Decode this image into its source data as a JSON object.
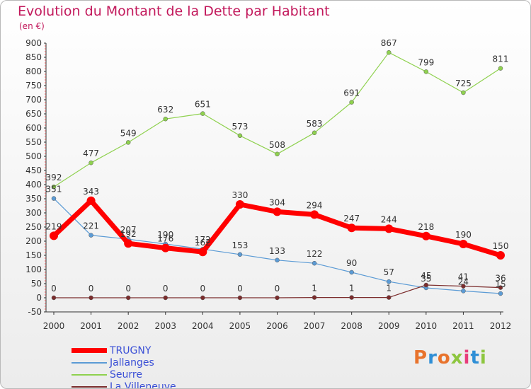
{
  "chart_data": {
    "type": "line",
    "title": "Evolution du Montant de la Dette par Habitant",
    "subtitle": "(en €)",
    "xlabel": "",
    "ylabel": "",
    "categories": [
      "2000",
      "2001",
      "2002",
      "2003",
      "2004",
      "2005",
      "2006",
      "2007",
      "2008",
      "2009",
      "2010",
      "2011",
      "2012"
    ],
    "ylim": [
      -50,
      900
    ],
    "yticks": [
      -50,
      0,
      50,
      100,
      150,
      200,
      250,
      300,
      350,
      400,
      450,
      500,
      550,
      600,
      650,
      700,
      750,
      800,
      850,
      900
    ],
    "grid": false,
    "legend_position": "bottom-left",
    "series": [
      {
        "name": "TRUGNY",
        "color": "#ff0000",
        "values": [
          219,
          343,
          192,
          176,
          162,
          330,
          304,
          294,
          247,
          244,
          218,
          190,
          150
        ]
      },
      {
        "name": "Jallanges",
        "color": "#5b9bd5",
        "values": [
          351,
          221,
          207,
          190,
          172,
          153,
          133,
          122,
          90,
          57,
          35,
          24,
          15
        ]
      },
      {
        "name": "Seurre",
        "color": "#8fd14f",
        "values": [
          392,
          477,
          549,
          632,
          651,
          573,
          508,
          583,
          691,
          867,
          799,
          725,
          811
        ]
      },
      {
        "name": "La Villeneuve",
        "color": "#7b2c2c",
        "values": [
          0,
          0,
          0,
          0,
          0,
          0,
          0,
          1,
          1,
          1,
          45,
          41,
          36
        ]
      }
    ]
  },
  "brand": {
    "text": "Proxiti",
    "colors": [
      "#e8732c",
      "#2f8fd6",
      "#e8732c",
      "#8dc63f",
      "#e83c7a",
      "#2f8fd6",
      "#8dc63f"
    ]
  }
}
